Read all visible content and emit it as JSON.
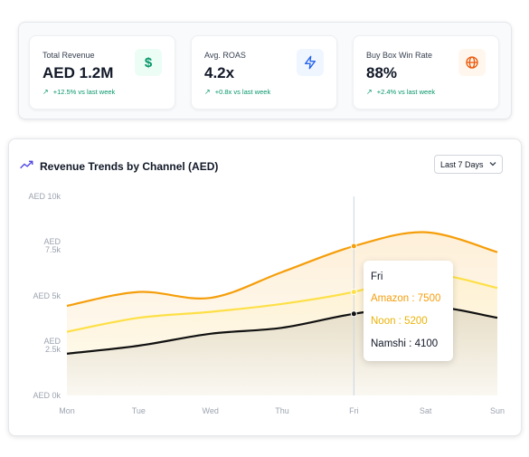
{
  "kpis": [
    {
      "label": "Total Revenue",
      "value": "AED 1.2M",
      "delta": "+12.5% vs last week",
      "icon": "dollar-icon",
      "icon_color": "#059669",
      "icon_bg": "#ecfdf5"
    },
    {
      "label": "Avg. ROAS",
      "value": "4.2x",
      "delta": "+0.8x vs last week",
      "icon": "lightning-icon",
      "icon_color": "#2563eb",
      "icon_bg": "#eff6ff"
    },
    {
      "label": "Buy Box Win Rate",
      "value": "88%",
      "delta": "+2.4% vs last week",
      "icon": "globe-icon",
      "icon_color": "#ea580c",
      "icon_bg": "#fff7ed"
    }
  ],
  "chart_header": {
    "title": "Revenue Trends by Channel (AED)",
    "title_icon": "trending-up-icon",
    "range": "Last 7 Days"
  },
  "tooltip": {
    "day": "Fri",
    "rows": [
      "Amazon : 7500",
      "Noon : 5200",
      "Namshi : 4100"
    ]
  },
  "chart_data": {
    "type": "area",
    "categories": [
      "Mon",
      "Tue",
      "Wed",
      "Thu",
      "Fri",
      "Sat",
      "Sun"
    ],
    "y_ticks": [
      "AED 0k",
      "AED 2.5k",
      "AED 5k",
      "AED 7.5k",
      "AED 10k"
    ],
    "ylim": [
      0,
      10000
    ],
    "grid": false,
    "series": [
      {
        "name": "Amazon",
        "color": "#f59e0b",
        "values": [
          4500,
          5200,
          4900,
          6200,
          7500,
          8200,
          7200
        ]
      },
      {
        "name": "Noon",
        "color": "#fde047",
        "values": [
          3200,
          3900,
          4200,
          4600,
          5200,
          6100,
          5400
        ]
      },
      {
        "name": "Namshi",
        "color": "#111111",
        "values": [
          2100,
          2500,
          3100,
          3400,
          4100,
          4500,
          3900
        ]
      }
    ],
    "highlight_index": 4
  }
}
